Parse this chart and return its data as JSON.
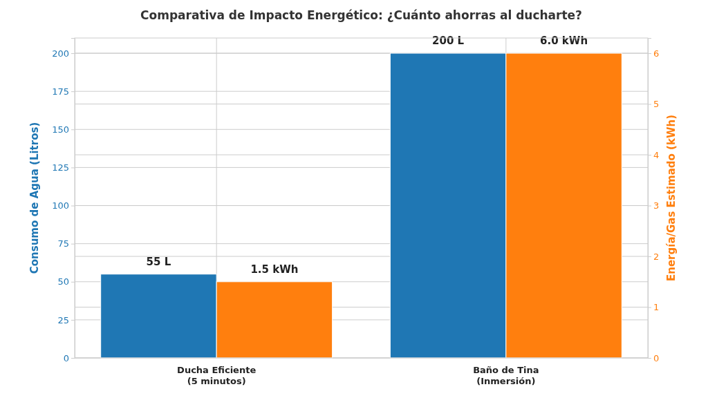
{
  "chart_data": {
    "type": "bar",
    "title": "Comparativa de Impacto Energético: ¿Cuánto ahorras al ducharte?",
    "categories": [
      "Ducha Eficiente\n(5 minutos)",
      "Baño de Tina\n(Inmersión)"
    ],
    "ylabel": "Consumo de Agua (Litros)",
    "y2label": "Energía/Gas Estimado (kWh)",
    "series": [
      {
        "color": "#1f77b4",
        "values": [
          55,
          200
        ],
        "value_labels": [
          "55 L",
          "200 L"
        ]
      },
      {
        "color": "#ff7f0e",
        "values": [
          1.5,
          6.0
        ],
        "value_labels": [
          "1.5 kWh",
          "6.0 kWh"
        ],
        "axis": "y2"
      }
    ],
    "ylim": [
      0,
      210
    ],
    "yticks": [
      0,
      25,
      50,
      75,
      100,
      125,
      150,
      175,
      200
    ],
    "y2lim": [
      0,
      6.3
    ],
    "y2ticks": [
      0,
      1,
      2,
      3,
      4,
      5,
      6
    ],
    "grid": true
  }
}
